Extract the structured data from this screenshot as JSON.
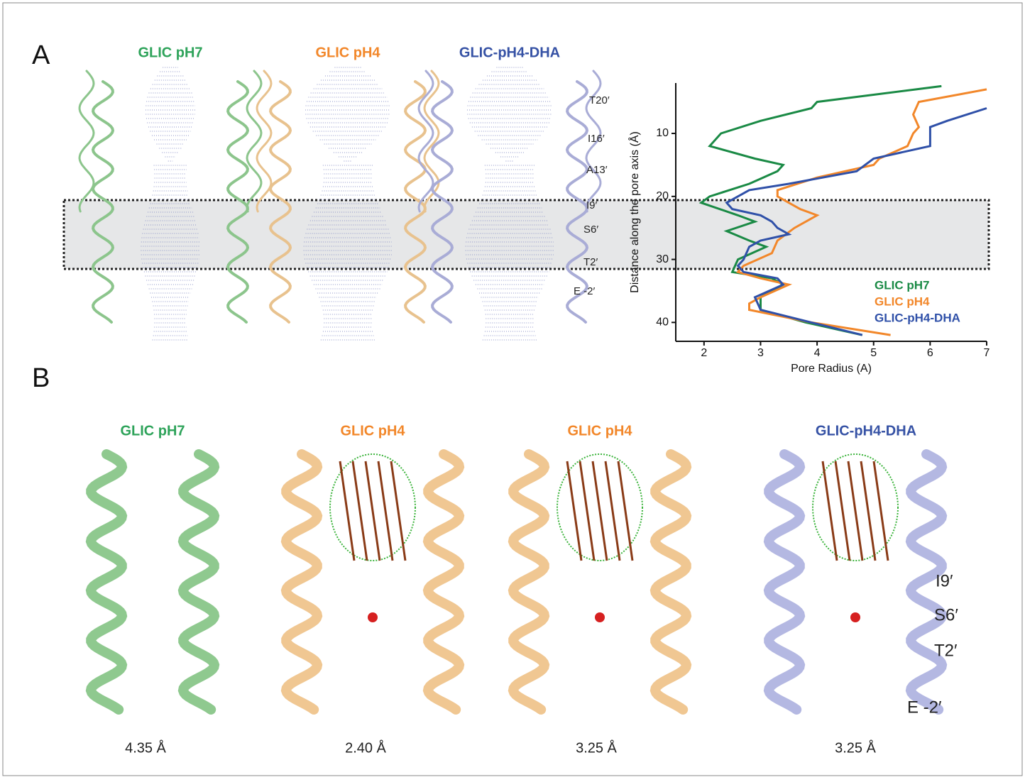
{
  "panel_a": {
    "label": "A",
    "titles": [
      "GLIC pH7",
      "GLIC pH4",
      "GLIC-pH4-DHA"
    ],
    "residues": [
      "T20′",
      "I16′",
      "A13′",
      "I9′",
      "S6′",
      "T2′",
      "E -2′"
    ]
  },
  "chart_data": {
    "type": "line",
    "x_label": "Pore Radius (A)",
    "y_label": "Distance along the pore axis (Å)",
    "xlim": [
      1.5,
      7
    ],
    "xticks": [
      2,
      3,
      4,
      5,
      6,
      7
    ],
    "ylim": [
      43,
      2
    ],
    "yticks": [
      10,
      20,
      30,
      40
    ],
    "series": [
      {
        "name": "GLIC pH7",
        "color": "#1a8a45",
        "y": [
          2.5,
          5,
          6,
          8,
          10,
          12,
          14,
          15,
          16,
          18,
          20,
          21,
          23,
          24,
          25.5,
          27,
          28,
          30,
          32,
          33,
          34,
          36,
          38,
          40,
          42
        ],
        "values": [
          6.2,
          4.0,
          3.9,
          3.0,
          2.3,
          2.1,
          2.9,
          3.4,
          3.3,
          2.8,
          2.1,
          1.95,
          2.6,
          2.9,
          2.4,
          2.8,
          3.1,
          2.6,
          2.5,
          3.2,
          3.4,
          3.0,
          3.0,
          3.8,
          4.8
        ]
      },
      {
        "name": "GLIC pH4",
        "color": "#f2872a",
        "y": [
          3,
          5,
          7,
          9,
          10,
          12,
          14,
          15,
          17,
          19,
          20,
          22,
          23,
          25,
          27,
          29,
          31,
          32,
          33,
          34,
          36,
          37,
          38,
          40,
          42
        ],
        "values": [
          7.0,
          5.8,
          5.7,
          5.8,
          5.7,
          5.6,
          5.1,
          5.0,
          4.0,
          3.3,
          3.3,
          3.7,
          4.0,
          3.6,
          3.3,
          3.2,
          2.7,
          2.6,
          3.0,
          3.5,
          3.0,
          2.8,
          2.8,
          3.9,
          5.3
        ]
      },
      {
        "name": "GLIC-pH4-DHA",
        "color": "#2f50a8",
        "y": [
          6,
          8,
          9,
          12,
          14,
          16,
          18,
          19,
          21,
          22,
          23,
          24,
          25,
          26,
          27,
          28,
          30,
          31,
          32,
          33,
          34,
          36,
          38,
          40,
          42
        ],
        "values": [
          7.0,
          6.3,
          6.0,
          6.0,
          5.0,
          4.7,
          3.5,
          2.8,
          2.4,
          2.5,
          3.0,
          3.2,
          3.3,
          3.5,
          3.0,
          2.8,
          2.7,
          2.6,
          2.7,
          3.3,
          3.4,
          2.9,
          3.0,
          3.9,
          4.8
        ]
      }
    ]
  },
  "panel_b": {
    "label": "B",
    "titles": [
      "GLIC pH7",
      "GLIC pH4",
      "GLIC pH4",
      "GLIC-pH4-DHA"
    ],
    "resolutions": [
      "4.35 Å",
      "2.40 Å",
      "3.25 Å",
      "3.25 Å"
    ],
    "residues": [
      "I9′",
      "S6′",
      "T2′",
      "E -2′"
    ]
  }
}
